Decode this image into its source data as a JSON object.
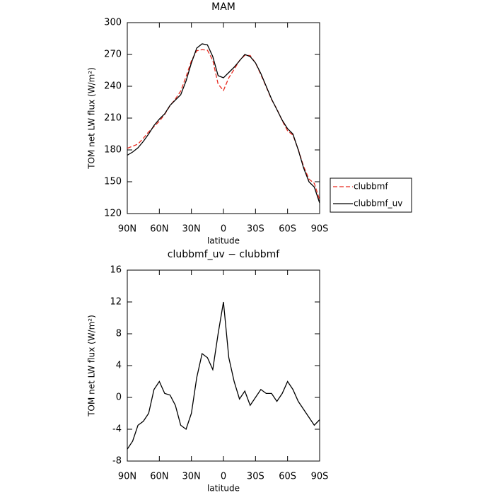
{
  "chart_data": [
    {
      "type": "line",
      "title": "MAM",
      "xlabel": "latitude",
      "ylabel": "TOM net LW flux (W/m²)",
      "x": [
        90,
        85,
        80,
        75,
        70,
        65,
        60,
        55,
        50,
        45,
        40,
        35,
        30,
        25,
        20,
        15,
        10,
        5,
        0,
        -5,
        -10,
        -15,
        -20,
        -25,
        -30,
        -35,
        -40,
        -45,
        -50,
        -55,
        -60,
        -65,
        -70,
        -75,
        -80,
        -85,
        -90
      ],
      "series": [
        {
          "name": "clubbmf",
          "color": "#e8291e",
          "dash": true,
          "values": [
            181.5,
            183.5,
            185.5,
            191,
            197,
            202,
            207,
            213.5,
            221.7,
            228,
            235.5,
            249,
            264,
            273.5,
            274.5,
            274,
            264.5,
            242,
            236,
            248,
            256,
            264.2,
            269.2,
            269,
            262,
            251,
            239.5,
            227.5,
            218.5,
            207.5,
            198,
            194,
            180.5,
            164.5,
            152.5,
            148.5,
            132.8
          ]
        },
        {
          "name": "clubbmf_uv",
          "color": "#000000",
          "dash": false,
          "values": [
            175,
            178,
            182,
            188,
            195,
            203,
            209,
            214,
            222,
            227,
            232,
            245,
            262,
            276,
            280,
            279,
            268,
            250,
            248,
            253,
            258,
            264,
            270,
            268,
            262,
            252,
            240,
            228,
            218,
            208,
            200,
            195,
            180,
            163,
            150,
            145,
            130
          ]
        }
      ],
      "xlim": [
        90,
        -90
      ],
      "xticks": [
        {
          "value": 90,
          "label": "90N"
        },
        {
          "value": 60,
          "label": "60N"
        },
        {
          "value": 30,
          "label": "30N"
        },
        0,
        {
          "value": -30,
          "label": "30S"
        },
        {
          "value": -60,
          "label": "60S"
        },
        {
          "value": -90,
          "label": "90S"
        }
      ],
      "ylim": [
        120,
        300
      ],
      "yticks": [
        120,
        150,
        180,
        210,
        240,
        270,
        300
      ]
    },
    {
      "type": "line",
      "title": "clubbmf_uv − clubbmf",
      "xlabel": "latitude",
      "ylabel": "TOM net LW flux (W/m²)",
      "x": [
        90,
        85,
        80,
        75,
        70,
        65,
        60,
        55,
        50,
        45,
        40,
        35,
        30,
        25,
        20,
        15,
        10,
        5,
        0,
        -5,
        -10,
        -15,
        -20,
        -25,
        -30,
        -35,
        -40,
        -45,
        -50,
        -55,
        -60,
        -65,
        -70,
        -75,
        -80,
        -85,
        -90
      ],
      "series": [
        {
          "color": "#000000",
          "dash": false,
          "values": [
            -6.5,
            -5.5,
            -3.5,
            -3,
            -2,
            1,
            2,
            0.5,
            0.3,
            -1,
            -3.5,
            -4,
            -2,
            2.5,
            5.5,
            5,
            3.5,
            8,
            12,
            5,
            2,
            -0.2,
            0.8,
            -1,
            0,
            1,
            0.5,
            0.5,
            -0.5,
            0.5,
            2,
            1,
            -0.5,
            -1.5,
            -2.5,
            -3.5,
            -2.8
          ]
        }
      ],
      "xlim": [
        90,
        -90
      ],
      "xticks": [
        {
          "value": 90,
          "label": "90N"
        },
        {
          "value": 60,
          "label": "60N"
        },
        {
          "value": 30,
          "label": "30N"
        },
        0,
        {
          "value": -30,
          "label": "30S"
        },
        {
          "value": -60,
          "label": "60S"
        },
        {
          "value": -90,
          "label": "90S"
        }
      ],
      "ylim": [
        -8,
        16
      ],
      "yticks": [
        -8,
        -4,
        0,
        4,
        8,
        12,
        16
      ]
    }
  ]
}
